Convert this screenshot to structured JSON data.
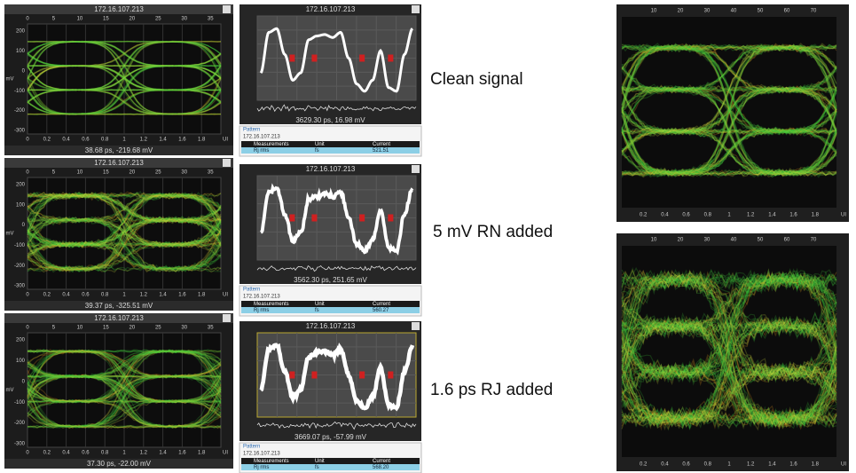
{
  "eye_panels": [
    {
      "title": "172.16.107.213",
      "readout": "38.68 ps, -219.68 mV"
    },
    {
      "title": "172.16.107.213",
      "readout": "39.37 ps, -325.51 mV"
    },
    {
      "title": "172.16.107.213",
      "readout": "37.30 ps, -22.00 mV"
    }
  ],
  "eye_axes": {
    "top": [
      "0",
      "5",
      "10",
      "15",
      "20",
      "25",
      "30",
      "35"
    ],
    "bottom": [
      "0",
      "0.2",
      "0.4",
      "0.6",
      "0.8",
      "1",
      "1.2",
      "1.4",
      "1.6",
      "1.8"
    ],
    "left": [
      "200",
      "100",
      "0",
      "-100",
      "-200",
      "-300"
    ],
    "y_unit": "mV",
    "x_unit": "UI"
  },
  "wave_panels": [
    {
      "title": "172.16.107.213",
      "readout": "3629.30 ps, 16.98 mV",
      "tab": "Pattern",
      "address": "172.16.107.213",
      "headers": [
        "Measurements",
        "Unit",
        "Current"
      ],
      "row": [
        "Rj rms",
        "fs",
        "521.51"
      ]
    },
    {
      "title": "172.16.107.213",
      "readout": "3562.30 ps, 251.65 mV",
      "tab": "Pattern",
      "address": "172.16.107.213",
      "headers": [
        "Measurements",
        "Unit",
        "Current"
      ],
      "row": [
        "Rj rms",
        "fs",
        "560.27"
      ]
    },
    {
      "title": "172.16.107.213",
      "readout": "3669.07 ps, -57.99 mV",
      "tab": "Pattern",
      "address": "172.16.107.213",
      "headers": [
        "Measurements",
        "Unit",
        "Current"
      ],
      "row": [
        "Rj rms",
        "fs",
        "568.20"
      ]
    }
  ],
  "labels": [
    "Clean signal",
    "5 mV RN added",
    "1.6 ps RJ added"
  ],
  "right_axes": {
    "top": [
      "10",
      "20",
      "30",
      "40",
      "50",
      "60",
      "70"
    ],
    "bottom": [
      "0.2",
      "0.4",
      "0.6",
      "0.8",
      "1",
      "1.2",
      "1.4",
      "1.6",
      "1.8"
    ],
    "x_unit": "UI"
  }
}
